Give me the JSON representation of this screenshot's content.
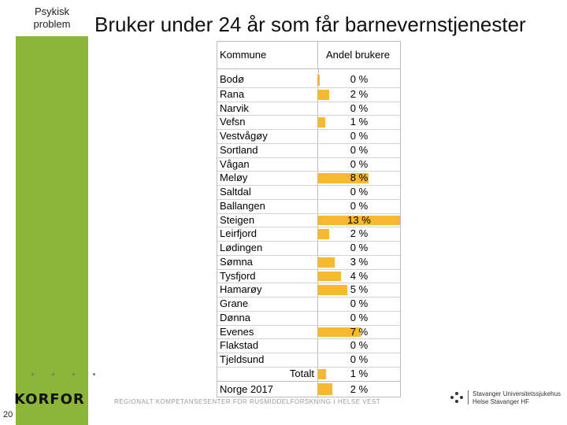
{
  "side_label": [
    "Psykisk",
    "problem"
  ],
  "title": "Bruker under 24 år som får barnevernstjenester",
  "table": {
    "col_kommune": "Kommune",
    "col_andel": "Andel brukere",
    "rows": [
      {
        "name": "Bodø",
        "pct": "0 %",
        "value": 0.3
      },
      {
        "name": "Rana",
        "pct": "2 %",
        "value": 1.8
      },
      {
        "name": "Narvik",
        "pct": "0 %",
        "value": 0
      },
      {
        "name": "Vefsn",
        "pct": "1 %",
        "value": 1.1
      },
      {
        "name": "Vestvågøy",
        "pct": "0 %",
        "value": 0
      },
      {
        "name": "Sortland",
        "pct": "0 %",
        "value": 0
      },
      {
        "name": "Vågan",
        "pct": "0 %",
        "value": 0
      },
      {
        "name": "Meløy",
        "pct": "8 %",
        "value": 8
      },
      {
        "name": "Saltdal",
        "pct": "0 %",
        "value": 0
      },
      {
        "name": "Ballangen",
        "pct": "0 %",
        "value": 0
      },
      {
        "name": "Steigen",
        "pct": "13 %",
        "value": 13
      },
      {
        "name": "Leirfjord",
        "pct": "2 %",
        "value": 1.8
      },
      {
        "name": "Lødingen",
        "pct": "0 %",
        "value": 0
      },
      {
        "name": "Sømna",
        "pct": "3 %",
        "value": 2.6
      },
      {
        "name": "Tysfjord",
        "pct": "4 %",
        "value": 3.6
      },
      {
        "name": "Hamarøy",
        "pct": "5 %",
        "value": 4.6
      },
      {
        "name": "Grane",
        "pct": "0 %",
        "value": 0
      },
      {
        "name": "Dønna",
        "pct": "0 %",
        "value": 0
      },
      {
        "name": "Evenes",
        "pct": "7 %",
        "value": 6.7
      },
      {
        "name": "Flakstad",
        "pct": "0 %",
        "value": 0
      },
      {
        "name": "Tjeldsund",
        "pct": "0 %",
        "value": 0
      }
    ],
    "total": {
      "name": "Totalt",
      "pct": "1 %",
      "value": 1.2
    },
    "norge": {
      "name": "Norge 2017",
      "pct": "2 %",
      "value": 2.3
    },
    "max_value": 13,
    "bar_color": "#f8b830"
  },
  "footer": {
    "logo": "KORFOR",
    "page_number": "20",
    "center_text": "REGIONALT KOMPETANSESENTER FOR RUSMIDDELFORSKNING I HELSE VEST",
    "right_line1": "Stavanger Universitetssjukehus",
    "right_line2": "Helse Stavanger HF"
  },
  "colors": {
    "side_band": "#8bb63a"
  }
}
